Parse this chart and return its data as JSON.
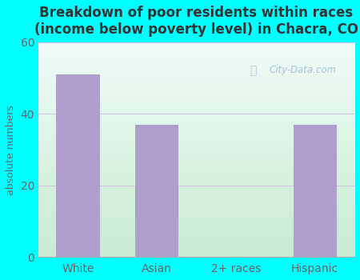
{
  "title": "Breakdown of poor residents within races\n(income below poverty level) in Chacra, CO",
  "categories": [
    "White",
    "Asian",
    "2+ races",
    "Hispanic"
  ],
  "values": [
    51,
    37,
    0,
    37
  ],
  "bar_color": "#b09fcc",
  "ylabel": "absolute numbers",
  "ylim": [
    0,
    60
  ],
  "yticks": [
    0,
    20,
    40,
    60
  ],
  "outer_bg_color": "#00ffff",
  "bg_color_topleft": "#d8ede0",
  "bg_color_topright": "#f0faf8",
  "bg_color_bottomleft": "#c8e8d0",
  "bg_color_bottomright": "#e8f8f0",
  "grid_color": "#ccbbdd",
  "title_color": "#333333",
  "tick_label_color": "#666666",
  "ylabel_color": "#666666",
  "watermark_text": "City-Data.com",
  "watermark_color": "#99bbcc",
  "title_fontsize": 12,
  "ylabel_fontsize": 9,
  "tick_fontsize": 10,
  "bar_width": 0.55
}
